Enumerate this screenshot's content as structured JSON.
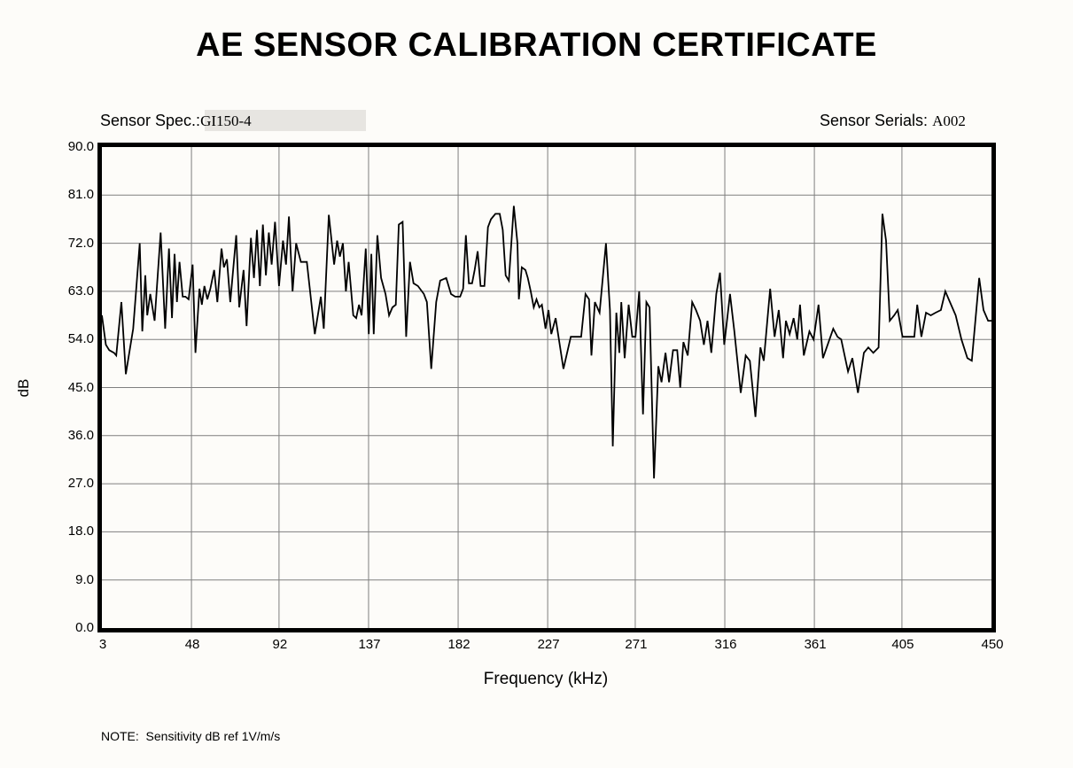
{
  "title": "AE SENSOR CALIBRATION CERTIFICATE",
  "header": {
    "spec_label": "Sensor Spec.:",
    "spec_value": "GI150-4",
    "serial_label": "Sensor Serials: ",
    "serial_value": "A002"
  },
  "note": "NOTE:  Sensitivity dB ref 1V/m/s",
  "colors": {
    "background": "#fdfcf9",
    "plot_border": "#000000",
    "grid": "#7f7f7f",
    "curve": "#000000",
    "spec_highlight": "#e7e5e1"
  },
  "chart_data": {
    "type": "line",
    "title": "",
    "xlabel": "Frequency (kHz)",
    "ylabel": "dB",
    "xlim": [
      3,
      450
    ],
    "ylim": [
      0,
      90
    ],
    "grid": true,
    "legend": "none",
    "x_ticks": [
      3,
      48,
      92,
      137,
      182,
      227,
      271,
      316,
      361,
      405,
      450
    ],
    "y_ticks": [
      0,
      9,
      18,
      27,
      36,
      45,
      54,
      63,
      72,
      81,
      90
    ],
    "series_name": "Sensitivity (dB ref 1V/m/s)",
    "points": [
      [
        3,
        58.5
      ],
      [
        5,
        53
      ],
      [
        6.7,
        52
      ],
      [
        9.1,
        51.5
      ],
      [
        10.2,
        51
      ],
      [
        12.8,
        61
      ],
      [
        15,
        47.5
      ],
      [
        18.7,
        56
      ],
      [
        22,
        72
      ],
      [
        23.3,
        55.5
      ],
      [
        24.8,
        66
      ],
      [
        25.8,
        58.5
      ],
      [
        27.3,
        62.5
      ],
      [
        29.5,
        57.5
      ],
      [
        32.5,
        74
      ],
      [
        34.8,
        56
      ],
      [
        36.7,
        71
      ],
      [
        38.2,
        58
      ],
      [
        39.5,
        70
      ],
      [
        40.7,
        61
      ],
      [
        42,
        68.5
      ],
      [
        43.6,
        62
      ],
      [
        45,
        62
      ],
      [
        46.6,
        61.5
      ],
      [
        48.6,
        68
      ],
      [
        50,
        51.5
      ],
      [
        52,
        63.5
      ],
      [
        53.2,
        60.5
      ],
      [
        54.5,
        64
      ],
      [
        56,
        61.5
      ],
      [
        57.5,
        63.5
      ],
      [
        59.4,
        67
      ],
      [
        61,
        61
      ],
      [
        63.1,
        71
      ],
      [
        64.3,
        67.5
      ],
      [
        65.8,
        69
      ],
      [
        67.5,
        61
      ],
      [
        70.5,
        73.5
      ],
      [
        72,
        60
      ],
      [
        74.2,
        67
      ],
      [
        75.7,
        56.5
      ],
      [
        77.9,
        73
      ],
      [
        79.4,
        65.5
      ],
      [
        80.9,
        74.5
      ],
      [
        82.4,
        64
      ],
      [
        83.9,
        75.5
      ],
      [
        85.4,
        66
      ],
      [
        86.9,
        74
      ],
      [
        88.3,
        68
      ],
      [
        90,
        76
      ],
      [
        92,
        64
      ],
      [
        94,
        72.5
      ],
      [
        95.5,
        68
      ],
      [
        97,
        77
      ],
      [
        98.8,
        63
      ],
      [
        100.6,
        72
      ],
      [
        103,
        68.5
      ],
      [
        106,
        68.5
      ],
      [
        110,
        55
      ],
      [
        113,
        62
      ],
      [
        114.5,
        56
      ],
      [
        117,
        77.3
      ],
      [
        119.7,
        68
      ],
      [
        121.2,
        72.5
      ],
      [
        122.6,
        69.5
      ],
      [
        124.1,
        72
      ],
      [
        125.6,
        63
      ],
      [
        127,
        68.5
      ],
      [
        129.3,
        58.5
      ],
      [
        130.8,
        58
      ],
      [
        132.2,
        60.5
      ],
      [
        133.5,
        58.5
      ],
      [
        135.6,
        71
      ],
      [
        137.1,
        55
      ],
      [
        138.4,
        70
      ],
      [
        139.6,
        55
      ],
      [
        141.4,
        73.5
      ],
      [
        143.3,
        65.5
      ],
      [
        145.5,
        62.5
      ],
      [
        147.3,
        58.5
      ],
      [
        149,
        60
      ],
      [
        150.7,
        60.5
      ],
      [
        152.2,
        75.5
      ],
      [
        154.1,
        76
      ],
      [
        155.9,
        54.5
      ],
      [
        157.8,
        68.5
      ],
      [
        159.6,
        64.5
      ],
      [
        161.8,
        64
      ],
      [
        164.8,
        62.5
      ],
      [
        166.3,
        61
      ],
      [
        168.5,
        48.5
      ],
      [
        171,
        61
      ],
      [
        173,
        65
      ],
      [
        176,
        65.5
      ],
      [
        178.4,
        62.5
      ],
      [
        180.5,
        62
      ],
      [
        183,
        62
      ],
      [
        184.5,
        63.5
      ],
      [
        185.9,
        73.5
      ],
      [
        187.4,
        64.5
      ],
      [
        189,
        64.5
      ],
      [
        190.3,
        67
      ],
      [
        191.8,
        70.5
      ],
      [
        193.3,
        64
      ],
      [
        195.2,
        64
      ],
      [
        197,
        75
      ],
      [
        198.5,
        76.5
      ],
      [
        200.7,
        77.5
      ],
      [
        202.9,
        77.5
      ],
      [
        204.4,
        74.5
      ],
      [
        205.9,
        66
      ],
      [
        207.5,
        65
      ],
      [
        210,
        79
      ],
      [
        211.8,
        72
      ],
      [
        212.5,
        61.5
      ],
      [
        214,
        67.5
      ],
      [
        215.8,
        67
      ],
      [
        217,
        65.5
      ],
      [
        218.5,
        63
      ],
      [
        220,
        60
      ],
      [
        221.4,
        61.5
      ],
      [
        222.8,
        60
      ],
      [
        224.1,
        60.5
      ],
      [
        225.9,
        56
      ],
      [
        227.4,
        59.5
      ],
      [
        228.8,
        55
      ],
      [
        231,
        58
      ],
      [
        234.9,
        48.5
      ],
      [
        238.6,
        54.5
      ],
      [
        243.8,
        54.5
      ],
      [
        246,
        62.5
      ],
      [
        247.8,
        61.5
      ],
      [
        249,
        51
      ],
      [
        250.7,
        61
      ],
      [
        253.1,
        59
      ],
      [
        256.3,
        72
      ],
      [
        258.3,
        59.5
      ],
      [
        259.7,
        34
      ],
      [
        261.5,
        59
      ],
      [
        263,
        51.5
      ],
      [
        264,
        61
      ],
      [
        265.7,
        50.5
      ],
      [
        267.7,
        60.5
      ],
      [
        269.5,
        54.5
      ],
      [
        271.1,
        54.5
      ],
      [
        273,
        63
      ],
      [
        274.9,
        40
      ],
      [
        276.6,
        61
      ],
      [
        278.2,
        60
      ],
      [
        280.4,
        28
      ],
      [
        282.6,
        49
      ],
      [
        284.2,
        46
      ],
      [
        286.2,
        51.5
      ],
      [
        288,
        46
      ],
      [
        290,
        52
      ],
      [
        292.1,
        52
      ],
      [
        293.6,
        45
      ],
      [
        295.2,
        53.5
      ],
      [
        297.4,
        51
      ],
      [
        299.6,
        61
      ],
      [
        301.5,
        59.5
      ],
      [
        303.6,
        57.5
      ],
      [
        305.5,
        53
      ],
      [
        307.3,
        57.5
      ],
      [
        309.2,
        51.5
      ],
      [
        311.7,
        62.5
      ],
      [
        313.6,
        66.5
      ],
      [
        315.7,
        53
      ],
      [
        318.6,
        62.5
      ],
      [
        320.8,
        55.5
      ],
      [
        324,
        44
      ],
      [
        326.5,
        51
      ],
      [
        328.6,
        50
      ],
      [
        331.4,
        39.5
      ],
      [
        333.9,
        52.5
      ],
      [
        335.6,
        50
      ],
      [
        338.8,
        63.5
      ],
      [
        341,
        54.5
      ],
      [
        343.1,
        59.5
      ],
      [
        345.3,
        50.5
      ],
      [
        346.7,
        57.5
      ],
      [
        348.6,
        55
      ],
      [
        350.6,
        58
      ],
      [
        352.4,
        54
      ],
      [
        353.8,
        60.5
      ],
      [
        355.7,
        51
      ],
      [
        358.5,
        55.5
      ],
      [
        360.6,
        54
      ],
      [
        363.1,
        60.5
      ],
      [
        365.3,
        50.5
      ],
      [
        370.5,
        56
      ],
      [
        372.6,
        54.5
      ],
      [
        374.5,
        54
      ],
      [
        377.9,
        48
      ],
      [
        380.1,
        50.5
      ],
      [
        382.9,
        44
      ],
      [
        385.9,
        51.5
      ],
      [
        388.1,
        52.5
      ],
      [
        390.6,
        51.5
      ],
      [
        393.3,
        52.5
      ],
      [
        395.2,
        77.5
      ],
      [
        397,
        72.5
      ],
      [
        398.9,
        57.5
      ],
      [
        401.1,
        58.5
      ],
      [
        402.9,
        59.5
      ],
      [
        405.3,
        54.5
      ],
      [
        408.2,
        54.5
      ],
      [
        411.2,
        54.5
      ],
      [
        412.7,
        60.5
      ],
      [
        414.8,
        54.5
      ],
      [
        417.1,
        59
      ],
      [
        419.5,
        58.5
      ],
      [
        421.9,
        59
      ],
      [
        424.6,
        59.5
      ],
      [
        426.8,
        63
      ],
      [
        429.1,
        61
      ],
      [
        432,
        58.5
      ],
      [
        434.9,
        54
      ],
      [
        437.9,
        50.5
      ],
      [
        440.1,
        50
      ],
      [
        443.8,
        65.5
      ],
      [
        446,
        59.5
      ],
      [
        448.3,
        57.5
      ],
      [
        450,
        57.5
      ]
    ]
  }
}
